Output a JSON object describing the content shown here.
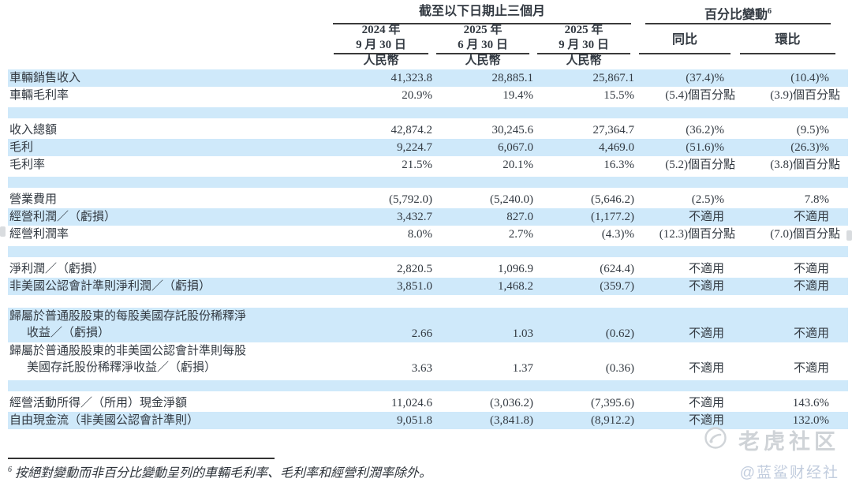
{
  "colors": {
    "stripe_blue": "#cfe9fa"
  },
  "header": {
    "period_group": "截至以下日期止三個月",
    "change_group": "百分比變動",
    "change_group_sup": "6",
    "columns": [
      {
        "line1": "2024 年",
        "line2": "9 月 30 日",
        "currency": "人民幣"
      },
      {
        "line1": "2025 年",
        "line2": "6 月 30 日",
        "currency": "人民幣"
      },
      {
        "line1": "2025 年",
        "line2": "9 月 30 日",
        "currency": "人民幣"
      },
      {
        "label": "同比"
      },
      {
        "label": "環比"
      }
    ]
  },
  "table": {
    "rows": [
      {
        "type": "data",
        "bg": "blue",
        "label": "車輛銷售收入",
        "values": [
          "41,323.8",
          "28,885.1",
          "25,867.1",
          "(37.4)%",
          "(10.4)%"
        ]
      },
      {
        "type": "data",
        "bg": "white",
        "label": "車輛毛利率",
        "values": [
          "20.9%",
          "19.4%",
          "15.5%",
          "(5.4)個百分點",
          "(3.9)個百分點"
        ]
      },
      {
        "type": "spacer"
      },
      {
        "type": "data",
        "bg": "white",
        "label": "收入總額",
        "values": [
          "42,874.2",
          "30,245.6",
          "27,364.7",
          "(36.2)%",
          "(9.5)%"
        ]
      },
      {
        "type": "data",
        "bg": "blue",
        "label": "毛利",
        "values": [
          "9,224.7",
          "6,067.0",
          "4,469.0",
          "(51.6)%",
          "(26.3)%"
        ]
      },
      {
        "type": "data",
        "bg": "white",
        "label": "毛利率",
        "values": [
          "21.5%",
          "20.1%",
          "16.3%",
          "(5.2)個百分點",
          "(3.8)個百分點"
        ]
      },
      {
        "type": "spacer"
      },
      {
        "type": "data",
        "bg": "white",
        "label": "營業費用",
        "values": [
          "(5,792.0)",
          "(5,240.0)",
          "(5,646.2)",
          "(2.5)%",
          "7.8%"
        ]
      },
      {
        "type": "data",
        "bg": "blue",
        "label": "經營利潤／（虧損）",
        "values": [
          "3,432.7",
          "827.0",
          "(1,177.2)",
          "不適用",
          "不適用"
        ]
      },
      {
        "type": "data",
        "bg": "white",
        "label": "經營利潤率",
        "values": [
          "8.0%",
          "2.7%",
          "(4.3)%",
          "(12.3)個百分點",
          "(7.0)個百分點"
        ]
      },
      {
        "type": "spacer"
      },
      {
        "type": "data",
        "bg": "white",
        "label": "淨利潤／（虧損）",
        "values": [
          "2,820.5",
          "1,096.9",
          "(624.4)",
          "不適用",
          "不適用"
        ]
      },
      {
        "type": "data",
        "bg": "blue",
        "label": "非美國公認會計準則淨利潤／（虧損）",
        "values": [
          "3,851.0",
          "1,468.2",
          "(359.7)",
          "不適用",
          "不適用"
        ]
      },
      {
        "type": "gap"
      },
      {
        "type": "data2",
        "bg": "blue",
        "label": "歸屬於普通股股東的每股美國存託股份稀釋淨",
        "label2": "收益／（虧損）",
        "values": [
          "2.66",
          "1.03",
          "(0.62)",
          "不適用",
          "不適用"
        ]
      },
      {
        "type": "data2",
        "bg": "white",
        "label": "歸屬於普通股股東的非美國公認會計準則每股",
        "label2": "美國存託股份稀釋淨收益／（虧損）",
        "values": [
          "3.63",
          "1.37",
          "(0.36)",
          "不適用",
          "不適用"
        ]
      },
      {
        "type": "spacer"
      },
      {
        "type": "data",
        "bg": "white",
        "label": "經營活動所得／（所用）現金淨額",
        "values": [
          "11,024.6",
          "(3,036.2)",
          "(7,395.6)",
          "不適用",
          "143.6%"
        ]
      },
      {
        "type": "data",
        "bg": "blue",
        "label": "自由現金流（非美國公認會計準則）",
        "values": [
          "9,051.8",
          "(3,841.8)",
          "(8,912.2)",
          "不適用",
          "132.0%"
        ]
      }
    ]
  },
  "footnote": {
    "sup": "6",
    "text": "按絕對變動而非百分比變動呈列的車輛毛利率、毛利率和經營利潤率除外。"
  },
  "watermark": {
    "brand": "老虎社区",
    "handle": "@蓝鲨财经社"
  }
}
